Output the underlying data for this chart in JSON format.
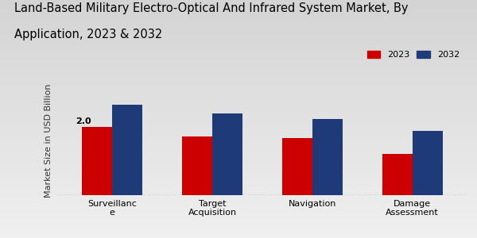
{
  "title_line1": "Land-Based Military Electro-Optical And Infrared System Market, By",
  "title_line2": "Application, 2023 & 2032",
  "categories": [
    "Surveillanc\ne",
    "Target\nAcquisition",
    "Navigation",
    "Damage\nAssessment"
  ],
  "values_2023": [
    2.0,
    1.72,
    1.68,
    1.2
  ],
  "values_2032": [
    2.65,
    2.38,
    2.22,
    1.88
  ],
  "color_2023": "#cc0000",
  "color_2032": "#1e3a78",
  "ylabel": "Market Size in USD Billion",
  "annotation": "2.0",
  "bar_width": 0.3,
  "ylim": [
    0,
    3.2
  ],
  "bg_top": "#d8d8d8",
  "bg_bottom": "#f5f5f5",
  "legend_2023": "2023",
  "legend_2032": "2032",
  "title_fontsize": 10.5,
  "axis_label_fontsize": 8,
  "tick_fontsize": 8,
  "bottom_bar_color": "#cc0000",
  "bottom_bar_height": 0.03
}
